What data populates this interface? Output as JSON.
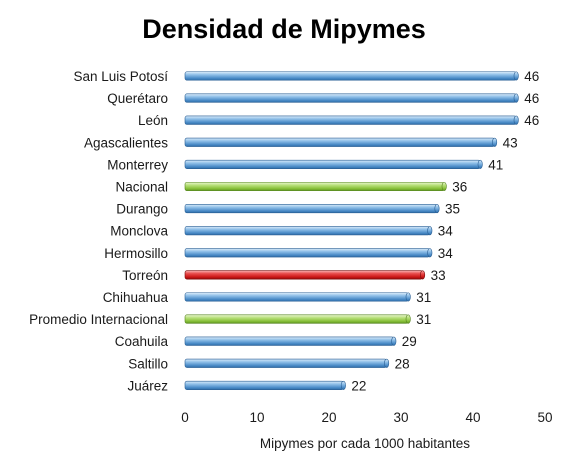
{
  "chart_data": {
    "type": "bar",
    "orientation": "horizontal",
    "title": "Densidad de Mipymes",
    "xlabel": "Mipymes por cada 1000 habitantes",
    "ylabel": "",
    "xlim": [
      0,
      50
    ],
    "xticks": [
      0,
      10,
      20,
      30,
      40,
      50
    ],
    "grid": false,
    "legend": "none",
    "categories": [
      "San Luis Potosí",
      "Querétaro",
      "León",
      "Agascalientes",
      "Monterrey",
      "Nacional",
      "Durango",
      "Monclova",
      "Hermosillo",
      "Torreón",
      "Chihuahua",
      "Promedio Internacional",
      "Coahuila",
      "Saltillo",
      "Juárez"
    ],
    "values": [
      46,
      46,
      46,
      43,
      41,
      36,
      35,
      34,
      34,
      33,
      31,
      31,
      29,
      28,
      22
    ],
    "highlight": {
      "Nacional": "green",
      "Promedio Internacional": "green",
      "Torreón": "red"
    },
    "colors": {
      "default": "#5b9bd5",
      "green": "#92d050",
      "red": "#e02020"
    }
  }
}
